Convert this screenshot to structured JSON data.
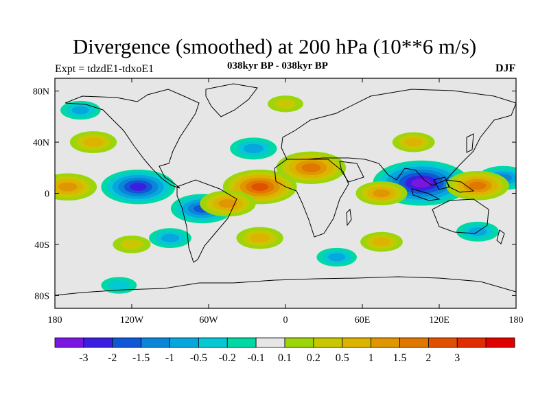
{
  "title": "Divergence (smoothed) at 200 hPa (10**6 m/s)",
  "left_subtitle": "Expt = tdzdE1-tdxoE1",
  "center_subtitle": "038kyr BP - 038kyr BP",
  "right_subtitle": "DJF",
  "map": {
    "projection": "cylindrical equidistant",
    "lon_range": [
      -180,
      180
    ],
    "lat_range": [
      -90,
      90
    ],
    "background_color": "#e6e6e6",
    "x_ticks": [
      {
        "value": -180,
        "label": "180"
      },
      {
        "value": -120,
        "label": "120W"
      },
      {
        "value": -60,
        "label": "60W"
      },
      {
        "value": 0,
        "label": "0"
      },
      {
        "value": 60,
        "label": "60E"
      },
      {
        "value": 120,
        "label": "120E"
      },
      {
        "value": 180,
        "label": "180"
      }
    ],
    "y_ticks": [
      {
        "value": 80,
        "label": "80N"
      },
      {
        "value": 40,
        "label": "40N"
      },
      {
        "value": 0,
        "label": "0"
      },
      {
        "value": -40,
        "label": "40S"
      },
      {
        "value": -80,
        "label": "80S"
      }
    ]
  },
  "colorbar": {
    "colors": [
      "#7a16e0",
      "#3c1ee0",
      "#0f57d6",
      "#0a86d8",
      "#06a7dc",
      "#05c8d4",
      "#00d9a4",
      "#e6e6e6",
      "#9cd60a",
      "#c8c800",
      "#dcb400",
      "#e09600",
      "#e07800",
      "#e05000",
      "#e02c00",
      "#e00000"
    ],
    "labels": [
      "-3",
      "-2",
      "-1.5",
      "-1",
      "-0.5",
      "-0.2",
      "-0.1",
      "0.1",
      "0.2",
      "0.5",
      "1",
      "1.5",
      "2",
      "3"
    ]
  },
  "chart_data": {
    "type": "heatmap",
    "title": "Divergence (smoothed) at 200 hPa (10**6 m/s)",
    "variable": "divergence difference",
    "units": "10**6 m/s",
    "contour_levels": [
      -3,
      -2,
      -1.5,
      -1,
      -0.5,
      -0.2,
      -0.1,
      0.1,
      0.2,
      0.5,
      1,
      1.5,
      2,
      3
    ],
    "xlim": [
      -180,
      180
    ],
    "ylim": [
      -90,
      90
    ],
    "anomaly_centers": [
      {
        "lon": 106,
        "lat": 8,
        "value": -3
      },
      {
        "lon": -115,
        "lat": 5,
        "value": -2
      },
      {
        "lon": -65,
        "lat": -12,
        "value": -1.5
      },
      {
        "lon": 170,
        "lat": 12,
        "value": -1
      },
      {
        "lon": -25,
        "lat": 35,
        "value": -0.8
      },
      {
        "lon": -20,
        "lat": 5,
        "value": 2
      },
      {
        "lon": 20,
        "lat": 20,
        "value": 1.8
      },
      {
        "lon": 150,
        "lat": 6,
        "value": 1.5
      },
      {
        "lon": -170,
        "lat": 5,
        "value": 1.3
      },
      {
        "lon": -45,
        "lat": -8,
        "value": 1.2
      },
      {
        "lon": 75,
        "lat": 0,
        "value": 1.0
      },
      {
        "lon": -150,
        "lat": 40,
        "value": 0.8
      },
      {
        "lon": 100,
        "lat": 40,
        "value": 0.6
      },
      {
        "lon": -20,
        "lat": -35,
        "value": 0.8
      },
      {
        "lon": 75,
        "lat": -38,
        "value": 0.6
      },
      {
        "lon": -90,
        "lat": -35,
        "value": -0.6
      },
      {
        "lon": 40,
        "lat": -50,
        "value": -0.5
      },
      {
        "lon": -120,
        "lat": -40,
        "value": 0.4
      },
      {
        "lon": -160,
        "lat": 65,
        "value": -0.5
      },
      {
        "lon": 0,
        "lat": 70,
        "value": 0.3
      },
      {
        "lon": 150,
        "lat": -30,
        "value": -0.6
      },
      {
        "lon": -130,
        "lat": -72,
        "value": -0.3
      }
    ]
  }
}
